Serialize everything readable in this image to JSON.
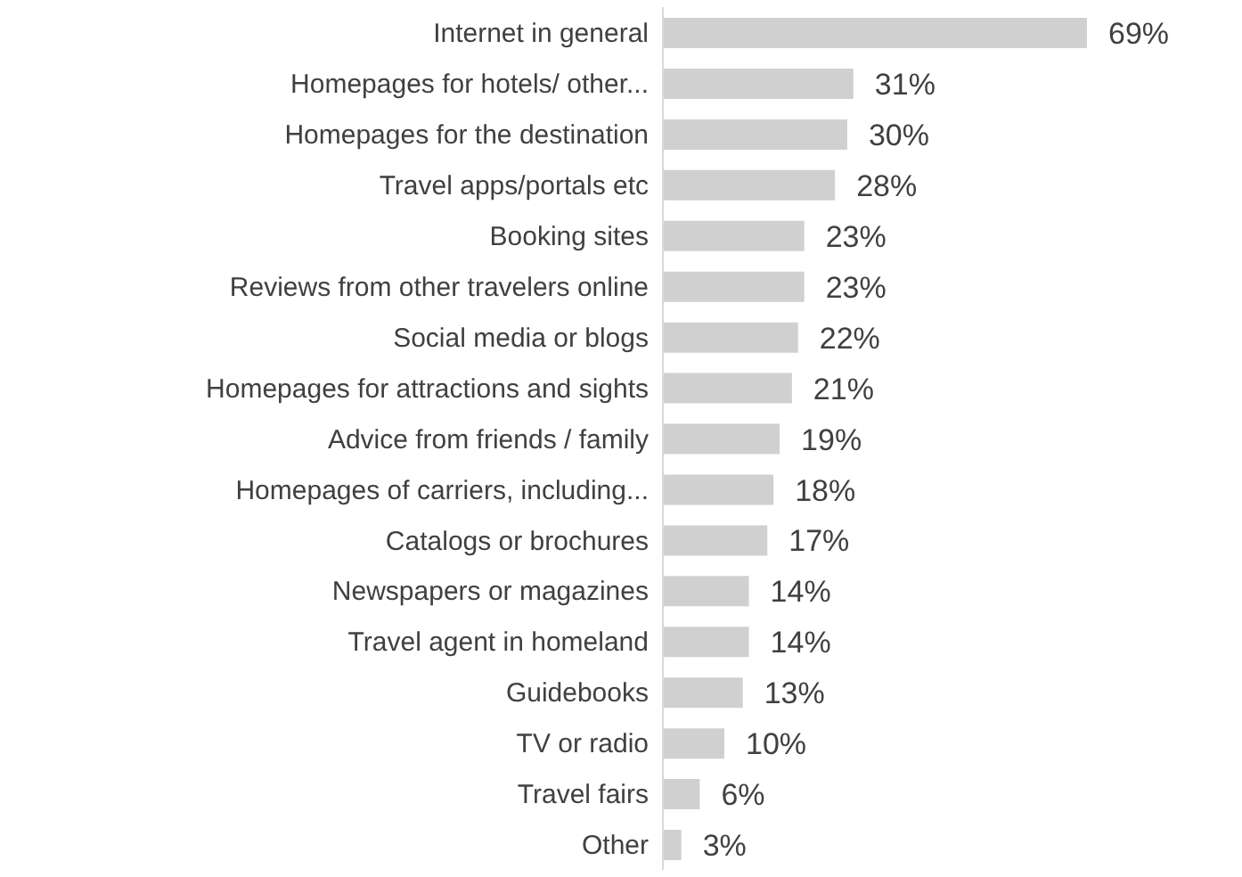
{
  "chart_data": {
    "type": "bar",
    "orientation": "horizontal",
    "categories": [
      "Internet in general",
      "Homepages for hotels/ other...",
      "Homepages for the destination",
      "Travel apps/portals etc",
      "Booking sites",
      "Reviews from other travelers online",
      "Social media or blogs",
      "Homepages for attractions and sights",
      "Advice from friends / family",
      "Homepages of carriers, including...",
      "Catalogs or brochures",
      "Newspapers or magazines",
      "Travel agent in homeland",
      "Guidebooks",
      "TV or radio",
      "Travel fairs",
      "Other"
    ],
    "values": [
      69,
      31,
      30,
      28,
      23,
      23,
      22,
      21,
      19,
      18,
      17,
      14,
      14,
      13,
      10,
      6,
      3
    ],
    "value_labels": [
      "69%",
      "31%",
      "30%",
      "28%",
      "23%",
      "23%",
      "22%",
      "21%",
      "19%",
      "18%",
      "17%",
      "14%",
      "14%",
      "13%",
      "10%",
      "6%",
      "3%"
    ],
    "color": "#d0d0d0",
    "grid": false,
    "legend": false
  }
}
